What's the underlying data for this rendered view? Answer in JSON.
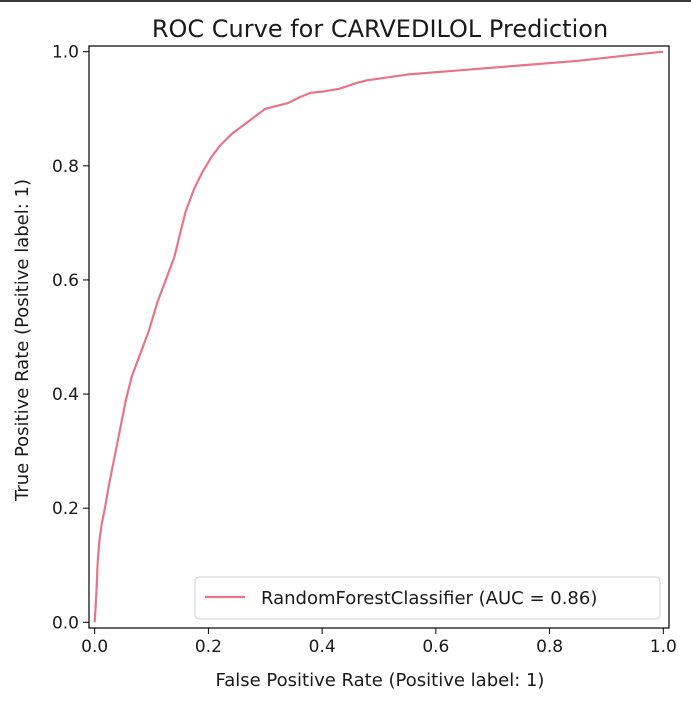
{
  "chart_data": {
    "type": "line",
    "title": "ROC Curve for CARVEDILOL Prediction",
    "xlabel": "False Positive Rate (Positive label: 1)",
    "ylabel": "True Positive Rate (Positive label: 1)",
    "xlim": [
      -0.01,
      1.01
    ],
    "ylim": [
      -0.01,
      1.01
    ],
    "x_ticks": [
      "0.0",
      "0.2",
      "0.4",
      "0.6",
      "0.8",
      "1.0"
    ],
    "y_ticks": [
      "0.0",
      "0.2",
      "0.4",
      "0.6",
      "0.8",
      "1.0"
    ],
    "grid": false,
    "legend_position": "lower-right",
    "series": [
      {
        "name": "RandomForestClassifier (AUC = 0.86)",
        "color": "#e8748a",
        "x": [
          0.0,
          0.003,
          0.005,
          0.008,
          0.012,
          0.018,
          0.025,
          0.035,
          0.045,
          0.055,
          0.065,
          0.08,
          0.095,
          0.11,
          0.125,
          0.14,
          0.15,
          0.16,
          0.175,
          0.19,
          0.205,
          0.22,
          0.24,
          0.26,
          0.28,
          0.3,
          0.32,
          0.34,
          0.36,
          0.38,
          0.4,
          0.43,
          0.46,
          0.48,
          0.55,
          0.65,
          0.75,
          0.85,
          0.95,
          1.0
        ],
        "y": [
          0.0,
          0.05,
          0.1,
          0.14,
          0.17,
          0.2,
          0.24,
          0.29,
          0.34,
          0.39,
          0.43,
          0.47,
          0.51,
          0.56,
          0.6,
          0.64,
          0.68,
          0.72,
          0.76,
          0.79,
          0.815,
          0.835,
          0.855,
          0.87,
          0.885,
          0.9,
          0.905,
          0.91,
          0.92,
          0.928,
          0.93,
          0.935,
          0.945,
          0.95,
          0.96,
          0.968,
          0.976,
          0.984,
          0.995,
          1.0
        ]
      }
    ]
  }
}
